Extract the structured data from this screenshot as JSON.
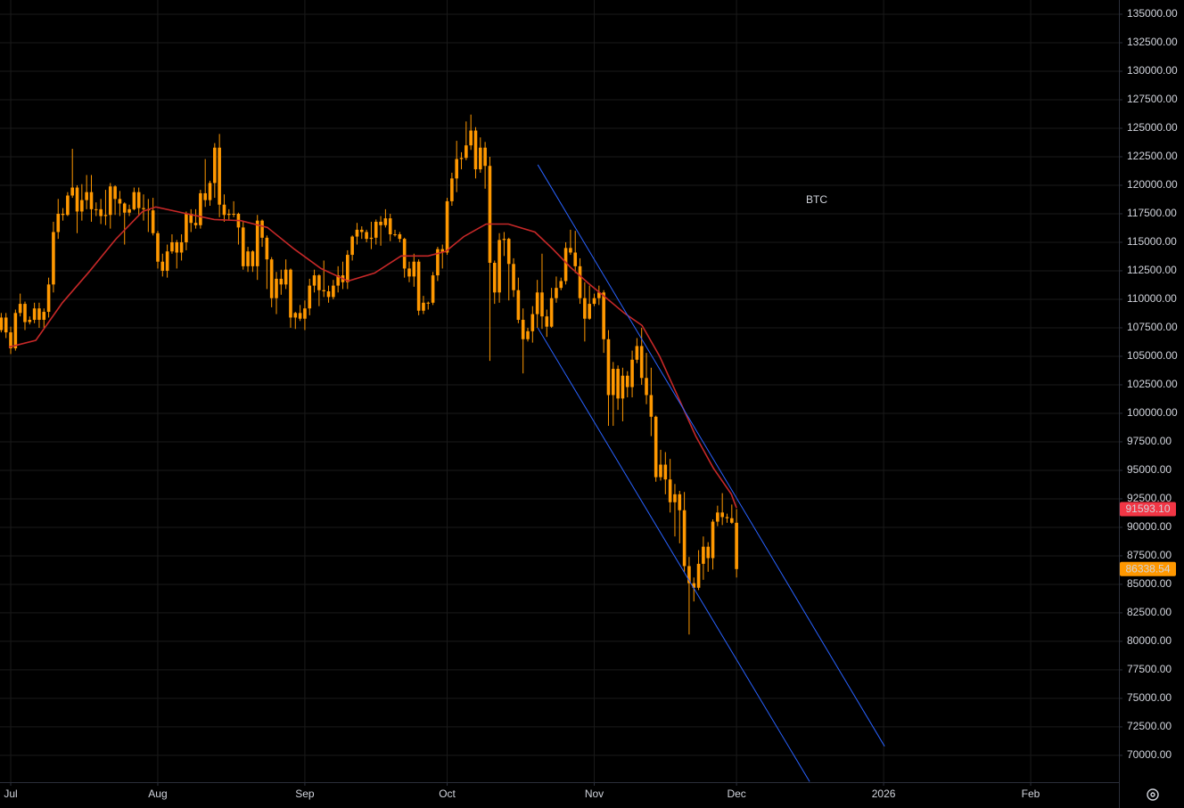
{
  "chart_data": {
    "type": "candlestick",
    "annotation": "BTC",
    "annotation_color": "#ff9800",
    "candle_color": "#ff9800",
    "grid": true,
    "xlim": [
      -2.26,
      233.6
    ],
    "ylim": [
      67650,
      136250
    ],
    "xticks": [
      {
        "value": 0,
        "label": "Jul"
      },
      {
        "value": 31,
        "label": "Aug"
      },
      {
        "value": 62,
        "label": "Sep"
      },
      {
        "value": 92,
        "label": "Oct"
      },
      {
        "value": 123,
        "label": "Nov"
      },
      {
        "value": 153,
        "label": "Dec"
      },
      {
        "value": 184,
        "label": "2026"
      },
      {
        "value": 215,
        "label": "Feb"
      }
    ],
    "yticks": [
      {
        "value": 70000,
        "label": "70000.00"
      },
      {
        "value": 72500,
        "label": "72500.00"
      },
      {
        "value": 75000,
        "label": "75000.00"
      },
      {
        "value": 77500,
        "label": "77500.00"
      },
      {
        "value": 80000,
        "label": "80000.00"
      },
      {
        "value": 82500,
        "label": "82500.00"
      },
      {
        "value": 85000,
        "label": "85000.00"
      },
      {
        "value": 87500,
        "label": "87500.00"
      },
      {
        "value": 90000,
        "label": "90000.00"
      },
      {
        "value": 92500,
        "label": "92500.00"
      },
      {
        "value": 95000,
        "label": "95000.00"
      },
      {
        "value": 97500,
        "label": "97500.00"
      },
      {
        "value": 100000,
        "label": "100000.00"
      },
      {
        "value": 102500,
        "label": "102500.00"
      },
      {
        "value": 105000,
        "label": "105000.00"
      },
      {
        "value": 107500,
        "label": "107500.00"
      },
      {
        "value": 110000,
        "label": "110000.00"
      },
      {
        "value": 112500,
        "label": "112500.00"
      },
      {
        "value": 115000,
        "label": "115000.00"
      },
      {
        "value": 117500,
        "label": "117500.00"
      },
      {
        "value": 120000,
        "label": "120000.00"
      },
      {
        "value": 122500,
        "label": "122500.00"
      },
      {
        "value": 125000,
        "label": "125000.00"
      },
      {
        "value": 127500,
        "label": "127500.00"
      },
      {
        "value": 130000,
        "label": "130000.00"
      },
      {
        "value": 132500,
        "label": "132500.00"
      },
      {
        "value": 135000,
        "label": "135000.00"
      }
    ],
    "x": [
      -2,
      -1,
      0,
      1,
      2,
      3,
      4,
      5,
      6,
      7,
      8,
      9,
      10,
      11,
      12,
      13,
      14,
      15,
      16,
      17,
      18,
      19,
      20,
      21,
      22,
      23,
      24,
      25,
      26,
      27,
      28,
      29,
      30,
      31,
      32,
      33,
      34,
      35,
      36,
      37,
      38,
      39,
      40,
      41,
      42,
      43,
      44,
      45,
      46,
      47,
      48,
      49,
      50,
      51,
      52,
      53,
      54,
      55,
      56,
      57,
      58,
      59,
      60,
      61,
      62,
      63,
      64,
      65,
      66,
      67,
      68,
      69,
      70,
      71,
      72,
      73,
      74,
      75,
      76,
      77,
      78,
      79,
      80,
      81,
      82,
      83,
      84,
      85,
      86,
      87,
      88,
      89,
      90,
      91,
      92,
      93,
      94,
      95,
      96,
      97,
      98,
      99,
      100,
      101,
      102,
      103,
      104,
      105,
      106,
      107,
      108,
      109,
      110,
      111,
      112,
      113,
      114,
      115,
      116,
      117,
      118,
      119,
      120,
      121,
      122,
      123,
      124,
      125,
      126,
      127,
      128,
      129,
      130,
      131,
      132,
      133,
      134,
      135,
      136,
      137,
      138,
      139,
      140,
      141,
      142,
      143,
      144,
      145,
      146,
      147,
      148,
      149,
      150,
      151,
      152,
      153
    ],
    "open": [
      107300,
      108400,
      107100,
      105700,
      108800,
      109600,
      108000,
      108200,
      109200,
      108200,
      108900,
      111300,
      115900,
      117500,
      117400,
      119100,
      119800,
      117700,
      118700,
      119400,
      117900,
      117900,
      117300,
      117400,
      119900,
      118800,
      118400,
      117600,
      117900,
      119400,
      118000,
      117900,
      117800,
      115800,
      113300,
      112500,
      114200,
      115000,
      114100,
      115000,
      117500,
      116700,
      116500,
      119300,
      118700,
      120200,
      123300,
      118300,
      117400,
      117500,
      117500,
      116300,
      112900,
      114200,
      112900,
      116900,
      115400,
      113500,
      110100,
      111800,
      111300,
      112600,
      108400,
      108800,
      108300,
      109200,
      111200,
      112100,
      110800,
      110700,
      110200,
      111200,
      112100,
      111500,
      113900,
      115500,
      116100,
      115900,
      115300,
      115400,
      116800,
      116500,
      117100,
      115700,
      115700,
      115300,
      112700,
      112000,
      113300,
      109000,
      109700,
      109700,
      112100,
      114400,
      114100,
      118600,
      120600,
      122300,
      122400,
      123500,
      124800,
      121400,
      123300,
      121700,
      113200,
      110600,
      115200,
      115300,
      113100,
      110800,
      108200,
      106500,
      107200,
      108700,
      110600,
      108500,
      107600,
      110100,
      111000,
      111600,
      114500,
      114100,
      112900,
      110100,
      108300,
      109600,
      110100,
      110600,
      106500,
      101600,
      103900,
      101300,
      103300,
      102300,
      104700,
      105900,
      103100,
      101600,
      99700,
      94400,
      95500,
      94200,
      92200,
      92900,
      91500,
      86600,
      85100,
      84700,
      86800,
      88300,
      87300,
      90500,
      91300,
      90900,
      90800,
      90400
    ],
    "high": [
      108800,
      108800,
      107600,
      109100,
      110500,
      109800,
      108500,
      109700,
      109700,
      109200,
      111900,
      116800,
      118800,
      118000,
      119400,
      123200,
      120000,
      120100,
      120900,
      120900,
      118500,
      118800,
      119600,
      120200,
      120000,
      119500,
      118500,
      118300,
      119800,
      119800,
      119200,
      118800,
      118900,
      116000,
      114000,
      114800,
      115700,
      115200,
      115700,
      117700,
      117900,
      117900,
      119600,
      122300,
      120400,
      123700,
      124500,
      119200,
      117900,
      118600,
      117600,
      116800,
      114600,
      114300,
      117400,
      117000,
      115600,
      113700,
      112400,
      112600,
      113500,
      112700,
      108900,
      109500,
      109900,
      111800,
      112600,
      112200,
      113400,
      111200,
      111700,
      112900,
      113300,
      114300,
      115600,
      116700,
      116400,
      116100,
      116800,
      117000,
      117300,
      117900,
      117500,
      116100,
      115900,
      115400,
      113300,
      114000,
      113500,
      110300,
      109800,
      112400,
      114600,
      114800,
      118900,
      121100,
      123900,
      122900,
      125600,
      126200,
      125100,
      124200,
      123800,
      122500,
      113400,
      115800,
      115900,
      115400,
      113600,
      111900,
      109200,
      107500,
      109400,
      111700,
      114000,
      109100,
      111000,
      112000,
      111900,
      115000,
      116100,
      116000,
      113600,
      111500,
      111200,
      110500,
      111200,
      110800,
      107300,
      104500,
      104200,
      104000,
      103700,
      105500,
      106600,
      107500,
      105300,
      104000,
      99800,
      96800,
      96600,
      96000,
      93800,
      93200,
      93100,
      87400,
      85600,
      88000,
      89200,
      88700,
      90700,
      91900,
      93000,
      91200,
      92000,
      91600
    ],
    "low": [
      107100,
      106600,
      105200,
      105500,
      108500,
      107300,
      107800,
      107900,
      107500,
      107500,
      108400,
      110600,
      115300,
      116900,
      117300,
      118900,
      115800,
      116900,
      117900,
      116800,
      117300,
      116600,
      116500,
      116200,
      117400,
      117300,
      114800,
      117300,
      117800,
      117400,
      116900,
      115900,
      115600,
      112700,
      112000,
      111900,
      114000,
      112700,
      113400,
      114300,
      115900,
      116200,
      116200,
      118100,
      118200,
      118900,
      117200,
      116800,
      117000,
      117200,
      114800,
      112600,
      112400,
      112400,
      111700,
      114600,
      110900,
      109300,
      108700,
      110400,
      110900,
      107500,
      107400,
      108100,
      107300,
      108600,
      110600,
      109400,
      110200,
      109700,
      110000,
      110600,
      110900,
      110900,
      113400,
      114800,
      115300,
      115000,
      114400,
      114800,
      114700,
      116300,
      115100,
      115500,
      115000,
      111900,
      111500,
      111100,
      108600,
      108700,
      109100,
      109500,
      111600,
      112700,
      113900,
      118200,
      119400,
      121400,
      122200,
      123100,
      120600,
      121100,
      119700,
      104600,
      109600,
      109700,
      113800,
      109900,
      110200,
      107900,
      103500,
      106300,
      106200,
      107500,
      107400,
      106700,
      107500,
      109700,
      110800,
      111300,
      113900,
      112300,
      109600,
      106300,
      108200,
      109400,
      109500,
      105300,
      98900,
      98900,
      100300,
      99300,
      101400,
      101400,
      104400,
      102500,
      100800,
      98000,
      94000,
      94100,
      92900,
      91300,
      89200,
      88600,
      86100,
      80600,
      83500,
      84500,
      85400,
      86100,
      86300,
      90100,
      90200,
      90400,
      90300,
      85600
    ],
    "close": [
      108400,
      107100,
      105700,
      108800,
      109600,
      108000,
      108200,
      109200,
      108200,
      108900,
      111300,
      115900,
      117500,
      117400,
      119100,
      119800,
      117700,
      118700,
      119400,
      117900,
      117900,
      117300,
      117400,
      119900,
      118800,
      118400,
      117600,
      117900,
      119400,
      118000,
      117900,
      117800,
      115800,
      113300,
      112500,
      114200,
      115000,
      114100,
      115000,
      117500,
      116700,
      116500,
      119300,
      118700,
      120200,
      123300,
      118300,
      117400,
      117500,
      117500,
      116300,
      112900,
      114200,
      112900,
      116900,
      115400,
      113500,
      110100,
      111800,
      111300,
      112600,
      108400,
      108800,
      108300,
      109200,
      111200,
      112100,
      110800,
      110700,
      110200,
      111200,
      112100,
      111500,
      113900,
      115500,
      116100,
      115900,
      115300,
      115400,
      116800,
      116500,
      117100,
      115700,
      115700,
      115300,
      112700,
      112000,
      113300,
      109000,
      109700,
      109700,
      112100,
      114400,
      114100,
      118600,
      120600,
      122300,
      122400,
      123500,
      124800,
      121400,
      123300,
      121700,
      113200,
      110600,
      115200,
      115300,
      113100,
      110800,
      108200,
      106500,
      107200,
      108700,
      110600,
      108500,
      107600,
      110100,
      111000,
      111600,
      114500,
      114100,
      112900,
      110100,
      108300,
      109600,
      110100,
      110600,
      106500,
      101600,
      103900,
      101300,
      103300,
      102300,
      104700,
      105900,
      103100,
      101600,
      99700,
      94400,
      95500,
      94200,
      92200,
      92900,
      91500,
      86600,
      85100,
      84700,
      86800,
      88300,
      87300,
      90500,
      91300,
      90900,
      90800,
      90400,
      86338.54
    ],
    "moving_average": {
      "color": "#c62828",
      "x": [
        -0.4,
        5.3,
        10.9,
        16.5,
        22.2,
        27.8,
        30.6,
        37.2,
        42.9,
        48.5,
        54.1,
        59.8,
        65.4,
        71.1,
        76.7,
        82.3,
        88,
        91.7,
        95.5,
        100.2,
        104.9,
        110.5,
        114.3,
        118,
        121.8,
        125.6,
        129.3,
        133.1,
        136.8,
        140.6,
        144.4,
        148.1,
        151.9,
        153
      ],
      "values": [
        105800,
        106400,
        109700,
        112400,
        115300,
        117700,
        118100,
        117500,
        117000,
        116900,
        116300,
        114400,
        112700,
        111600,
        112300,
        113800,
        113800,
        114200,
        115500,
        116600,
        116600,
        115900,
        114400,
        112800,
        111400,
        110100,
        108800,
        107700,
        105000,
        101500,
        98000,
        95200,
        92900,
        91700
      ]
    },
    "trendlines": [
      {
        "color": "#2962ff",
        "x": [
          111.1,
          184.2
        ],
        "y": [
          121800,
          70800
        ]
      },
      {
        "color": "#2962ff",
        "x": [
          111.1,
          168.4
        ],
        "y": [
          107500,
          67700
        ]
      }
    ],
    "price_labels": [
      {
        "value": 91593.1,
        "label": "91593.10",
        "color": "#f23645",
        "text_color": "#ffffff"
      },
      {
        "value": 86338.54,
        "label": "86338.54",
        "color": "#ff9800",
        "text_color": "#131722"
      }
    ]
  }
}
